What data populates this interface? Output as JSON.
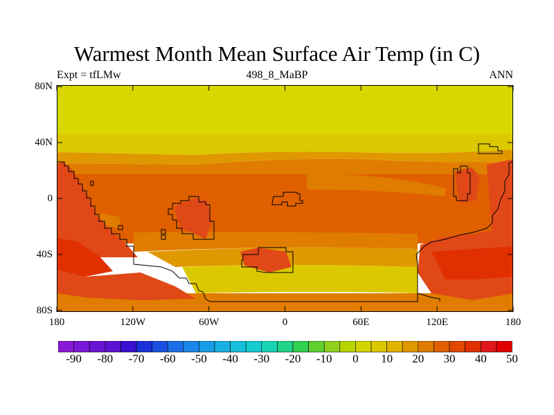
{
  "title": "Warmest Month Mean Surface Air Temp (in C)",
  "subtitle_left": "Expt = tfLMw",
  "subtitle_center": "498_8_MaBP",
  "subtitle_right": "ANN",
  "y_ticks": [
    {
      "label": "80N",
      "lat": 80
    },
    {
      "label": "40N",
      "lat": 40
    },
    {
      "label": "0",
      "lat": 0
    },
    {
      "label": "40S",
      "lat": -40
    },
    {
      "label": "80S",
      "lat": -80
    }
  ],
  "x_ticks": [
    {
      "label": "180",
      "lon": -180
    },
    {
      "label": "120W",
      "lon": -120
    },
    {
      "label": "60W",
      "lon": -60
    },
    {
      "label": "0",
      "lon": 0
    },
    {
      "label": "60E",
      "lon": 60
    },
    {
      "label": "120E",
      "lon": 120
    },
    {
      "label": "180",
      "lon": 180
    }
  ],
  "colorbar": {
    "colors": [
      "#8a19d8",
      "#7a18d8",
      "#6a14d4",
      "#5a12d0",
      "#3a10d0",
      "#1a30d8",
      "#1a50e0",
      "#1c6ee6",
      "#1a86ea",
      "#189ce8",
      "#18b0e4",
      "#16c0dc",
      "#16ccd0",
      "#18d4b4",
      "#20d48a",
      "#30d050",
      "#60d030",
      "#90d020",
      "#b8d400",
      "#d4d400",
      "#dcc800",
      "#e0b400",
      "#e09800",
      "#e07c00",
      "#e06000",
      "#e04800",
      "#e03000",
      "#e01818",
      "#e00000"
    ],
    "labels": [
      "-90",
      "-80",
      "-70",
      "-60",
      "-50",
      "-40",
      "-30",
      "-20",
      "-10",
      "0",
      "10",
      "20",
      "30",
      "40",
      "50"
    ]
  },
  "map_colors": {
    "very_warm": "#e03000",
    "hot": "#e04818",
    "warm": "#e06000",
    "mid": "#e07c00",
    "mild": "#e09800",
    "cool": "#e0b400",
    "cold": "#dcc800",
    "polar": "#d8d800"
  }
}
